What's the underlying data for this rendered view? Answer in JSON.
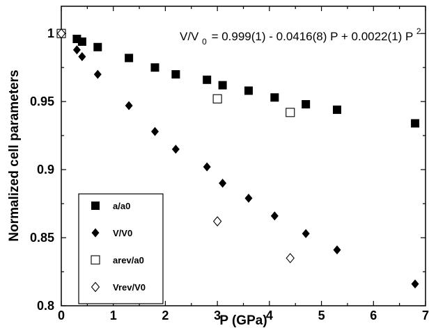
{
  "chart_data": {
    "type": "scatter",
    "title": "",
    "xlabel": "P (GPa)",
    "ylabel": "Normalized cell parameters",
    "xlim": [
      0,
      7
    ],
    "ylim": [
      0.8,
      1.02
    ],
    "x_ticks": [
      "0",
      "1",
      "2",
      "3",
      "4",
      "5",
      "6",
      "7"
    ],
    "y_ticks": [
      "0.8",
      "0.85",
      "0.9",
      "0.95",
      "1"
    ],
    "legend_position": "lower-left",
    "grid": false,
    "annotation": {
      "part1": "V/V",
      "sub": "0",
      "part2": "= 0.999(1) - 0.0416(8) P + 0.0022(1) P",
      "sup": "2"
    },
    "series": [
      {
        "name": "a/a0",
        "marker": "filled-square",
        "x": [
          0.0,
          0.3,
          0.4,
          0.7,
          1.3,
          1.8,
          2.2,
          2.8,
          3.1,
          3.6,
          4.1,
          4.7,
          5.3,
          6.8
        ],
        "y": [
          1.0,
          0.996,
          0.994,
          0.99,
          0.982,
          0.975,
          0.97,
          0.966,
          0.962,
          0.958,
          0.953,
          0.948,
          0.944,
          0.934
        ]
      },
      {
        "name": "V/V0",
        "marker": "filled-diamond",
        "x": [
          0.0,
          0.3,
          0.4,
          0.7,
          1.3,
          1.8,
          2.2,
          2.8,
          3.1,
          3.6,
          4.1,
          4.7,
          5.3,
          6.8
        ],
        "y": [
          1.0,
          0.988,
          0.983,
          0.97,
          0.947,
          0.928,
          0.915,
          0.902,
          0.89,
          0.879,
          0.866,
          0.853,
          0.841,
          0.816
        ]
      },
      {
        "name": "arev/a0",
        "marker": "open-square",
        "x": [
          0.0,
          3.0,
          4.4
        ],
        "y": [
          1.0,
          0.952,
          0.942
        ]
      },
      {
        "name": "Vrev/V0",
        "marker": "open-diamond",
        "x": [
          0.0,
          3.0,
          4.4
        ],
        "y": [
          1.0,
          0.862,
          0.835
        ]
      }
    ]
  }
}
